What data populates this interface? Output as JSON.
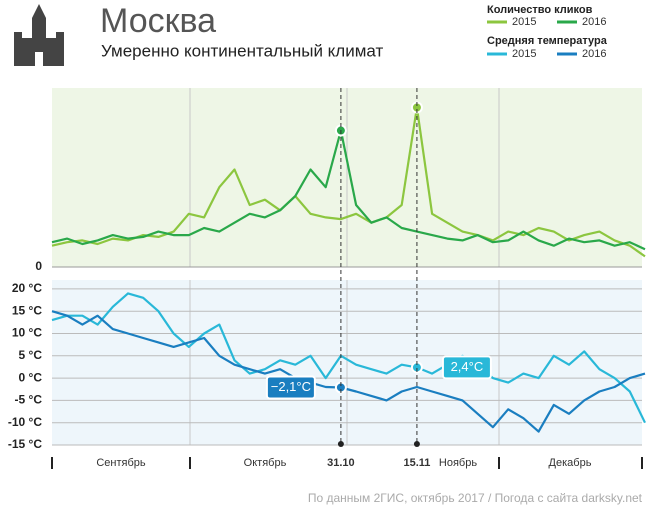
{
  "header": {
    "title": "Москва",
    "subtitle": "Умеренно континентальный климат"
  },
  "source": "По данным 2ГИС, октябрь 2017 / Погода с сайта darksky.net",
  "chart_data": [
    {
      "type": "line",
      "legend_title": "Количество кликов",
      "ylim": [
        0,
        101
      ],
      "yticks": [
        0
      ],
      "background": "#eef6e6",
      "series": [
        {
          "name": "2015",
          "color": "#8cc63f",
          "values": [
            12,
            14,
            15,
            13,
            16,
            15,
            18,
            17,
            20,
            30,
            28,
            45,
            55,
            35,
            38,
            32,
            40,
            30,
            28,
            27,
            30,
            25,
            28,
            35,
            90,
            30,
            25,
            20,
            18,
            15,
            20,
            18,
            22,
            20,
            15,
            18,
            20,
            15,
            12,
            6
          ]
        },
        {
          "name": "2016",
          "color": "#2aa84a",
          "values": [
            14,
            16,
            13,
            15,
            18,
            16,
            17,
            20,
            18,
            18,
            22,
            20,
            25,
            30,
            28,
            32,
            40,
            55,
            45,
            77,
            35,
            25,
            28,
            22,
            20,
            18,
            16,
            15,
            18,
            14,
            15,
            20,
            15,
            12,
            16,
            14,
            15,
            12,
            14,
            10
          ]
        }
      ],
      "highlights": [
        {
          "series": 0,
          "index": 24
        },
        {
          "series": 1,
          "index": 19
        }
      ]
    },
    {
      "type": "line",
      "legend_title": "Средняя температура",
      "ylim": [
        -15,
        22
      ],
      "background": "#eef6fb",
      "yticks": [
        {
          "value": -15,
          "label": "-15 °C"
        },
        {
          "value": -10,
          "label": "-10 °C"
        },
        {
          "value": -5,
          "label": "-5 °C"
        },
        {
          "value": 0,
          "label": "0 °C"
        },
        {
          "value": 5,
          "label": "5 °C"
        },
        {
          "value": 10,
          "label": "10 °C"
        },
        {
          "value": 15,
          "label": "15 °C"
        },
        {
          "value": 20,
          "label": "20 °C"
        }
      ],
      "categories": [
        null,
        null,
        null,
        null,
        null,
        null,
        null,
        null,
        null,
        null,
        null,
        null,
        null,
        null,
        null,
        null,
        null,
        null,
        null,
        "31.10",
        null,
        null,
        null,
        null,
        "15.11",
        null,
        null,
        null,
        null,
        null,
        null,
        null,
        null,
        null,
        null,
        null,
        null,
        null,
        null,
        null
      ],
      "x_sections": [
        "Сентябрь",
        "Октябрь",
        "Ноябрь",
        "Декабрь"
      ],
      "series": [
        {
          "name": "2015",
          "color": "#29b8d8",
          "values": [
            13,
            14,
            14,
            12,
            16,
            19,
            18,
            15,
            10,
            7,
            10,
            12,
            4,
            1,
            2,
            4,
            3,
            5,
            0,
            5,
            3,
            2,
            1,
            3,
            2.4,
            1,
            3,
            5,
            3,
            0,
            -1,
            1,
            0,
            5,
            3,
            6,
            2,
            0,
            -3,
            -10
          ]
        },
        {
          "name": "2016",
          "color": "#1a7ec0",
          "values": [
            15,
            14,
            12,
            14,
            11,
            10,
            9,
            8,
            7,
            8,
            9,
            5,
            3,
            2,
            1,
            2,
            0,
            -1,
            -2,
            -2.1,
            -3,
            -4,
            -5,
            -3,
            -2,
            -3,
            -4,
            -5,
            -8,
            -11,
            -7,
            -9,
            -12,
            -6,
            -8,
            -5,
            -3,
            -2,
            0,
            1
          ]
        }
      ],
      "annotations": [
        {
          "series": 1,
          "index": 19,
          "label": "−2,1°C"
        },
        {
          "series": 0,
          "index": 24,
          "label": "2,4°C"
        }
      ]
    }
  ]
}
